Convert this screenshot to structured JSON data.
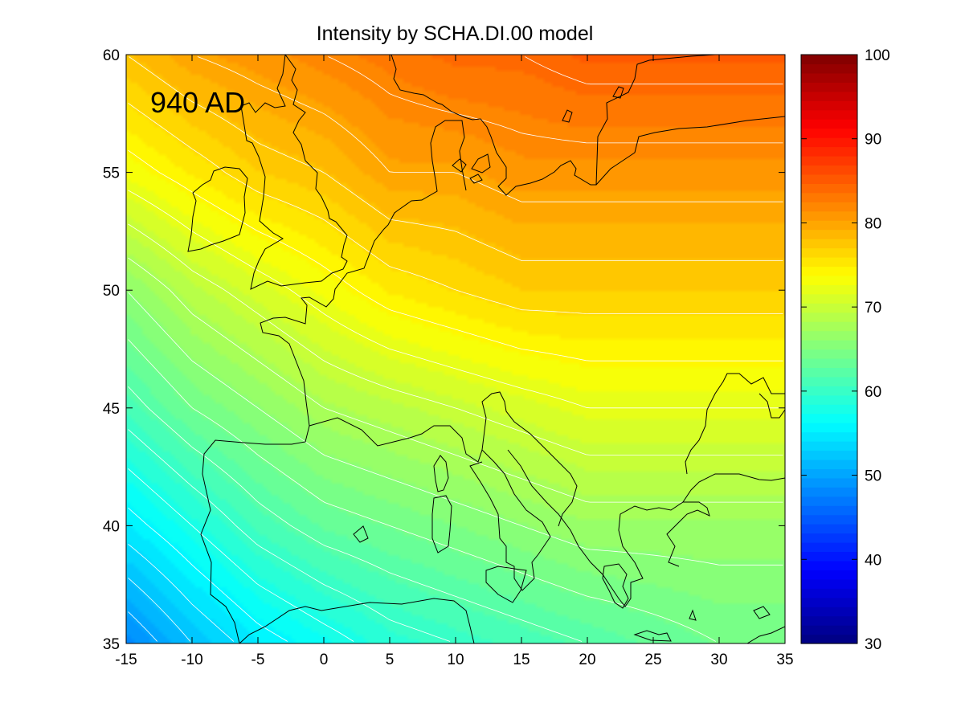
{
  "figure": {
    "title": "Intensity by SCHA.DI.00 model",
    "epoch_label": "940 AD",
    "colors": {
      "background": "#ffffff",
      "coastline": "#000000",
      "contour_line": "#ffffff"
    }
  },
  "chart_data": {
    "type": "heatmap",
    "title": "Intensity by SCHA.DI.00 model",
    "annotation": "940 AD",
    "xlim": [
      -15,
      35
    ],
    "ylim": [
      35,
      60
    ],
    "x_ticks": [
      -15,
      -10,
      -5,
      0,
      5,
      10,
      15,
      20,
      25,
      30,
      35
    ],
    "y_ticks": [
      35,
      40,
      45,
      50,
      55,
      60
    ],
    "colorbar": {
      "range": [
        30,
        100
      ],
      "ticks": [
        30,
        40,
        50,
        60,
        70,
        80,
        90,
        100
      ],
      "colormap": "jet"
    },
    "grid": false,
    "contour_lines": true,
    "values_lon": [
      -15,
      -10,
      -5,
      0,
      5,
      10,
      15,
      20,
      25,
      30,
      35
    ],
    "values_lat": [
      35,
      40,
      45,
      50,
      55,
      60
    ],
    "values": [
      [
        48,
        52,
        55,
        57,
        59,
        60,
        61,
        62,
        63,
        64,
        64
      ],
      [
        55,
        58,
        61,
        63,
        64,
        65,
        66,
        67,
        67,
        67,
        67
      ],
      [
        61,
        64,
        66,
        68,
        69,
        70,
        71,
        72,
        72,
        72,
        72
      ],
      [
        66,
        69,
        71,
        73,
        75,
        76,
        77,
        77,
        77,
        77,
        77
      ],
      [
        73,
        75,
        77,
        78,
        80,
        80,
        81,
        81,
        81,
        81,
        81
      ],
      [
        78,
        80,
        81,
        82,
        83,
        84,
        84,
        85,
        85,
        85,
        85
      ]
    ]
  }
}
